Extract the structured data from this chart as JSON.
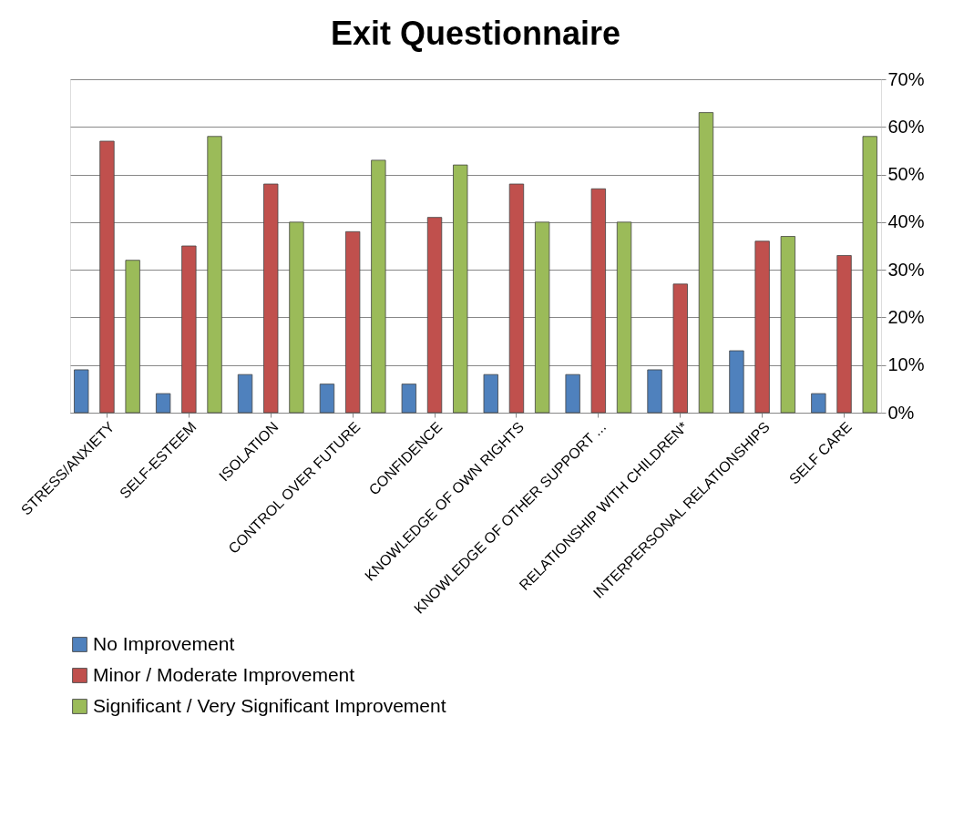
{
  "chart_data": {
    "type": "bar",
    "title": "Exit Questionnaire",
    "categories": [
      "STRESS/ANXIETY",
      "SELF-ESTEEM",
      "ISOLATION",
      "CONTROL OVER FUTURE",
      "CONFIDENCE",
      "KNOWLEDGE OF OWN RIGHTS",
      "KNOWLEDGE OF OTHER SUPPORT ...",
      "RELATIONSHIP WITH CHILDREN*",
      "INTERPERSONAL RELATIONSHIPS",
      "SELF CARE"
    ],
    "series": [
      {
        "name": "No Improvement",
        "color": "#4f81bd",
        "values": [
          9,
          4,
          8,
          6,
          6,
          8,
          8,
          9,
          13,
          4
        ]
      },
      {
        "name": "Minor / Moderate Improvement",
        "color": "#c0504d",
        "values": [
          57,
          35,
          48,
          38,
          41,
          48,
          47,
          27,
          36,
          33
        ]
      },
      {
        "name": "Significant / Very Significant Improvement",
        "color": "#9bbb59",
        "values": [
          32,
          58,
          40,
          53,
          52,
          40,
          40,
          63,
          37,
          58
        ]
      }
    ],
    "ylim": [
      0,
      70
    ],
    "yticks": [
      {
        "value": 0,
        "label": "0%"
      },
      {
        "value": 10,
        "label": "10%"
      },
      {
        "value": 20,
        "label": "20%"
      },
      {
        "value": 30,
        "label": "30%"
      },
      {
        "value": 40,
        "label": "40%"
      },
      {
        "value": 50,
        "label": "50%"
      },
      {
        "value": 60,
        "label": "60%"
      },
      {
        "value": 70,
        "label": "70%"
      }
    ],
    "grid": "y",
    "legend": "bottom left"
  }
}
